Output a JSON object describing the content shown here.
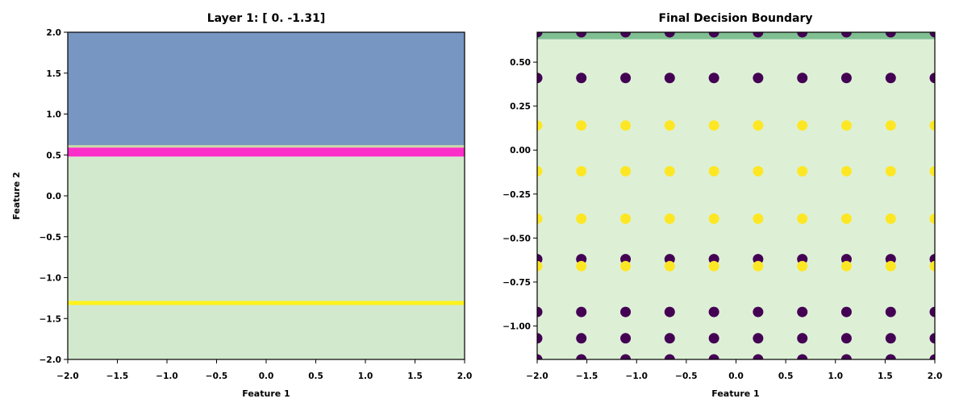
{
  "chart_data": [
    {
      "type": "heatmap",
      "title": "Layer 1: [ 0.   -1.31]",
      "xlabel": "Feature 1",
      "ylabel": "Feature 2",
      "xlim": [
        -2.0,
        2.0
      ],
      "ylim": [
        -2.0,
        2.0
      ],
      "xticks": [
        -2.0,
        -1.5,
        -1.0,
        -0.5,
        0.0,
        0.5,
        1.0,
        1.5,
        2.0
      ],
      "yticks": [
        -2.0,
        -1.5,
        -1.0,
        -0.5,
        0.0,
        0.5,
        1.0,
        1.5,
        2.0
      ],
      "xtick_labels": [
        "−2.0",
        "−1.5",
        "−1.0",
        "−0.5",
        "0.0",
        "0.5",
        "1.0",
        "1.5",
        "2.0"
      ],
      "ytick_labels": [
        "−2.0",
        "−1.5",
        "−1.0",
        "−0.5",
        "0.0",
        "0.5",
        "1.0",
        "1.5",
        "2.0"
      ],
      "grid": false,
      "regions": [
        {
          "y0": -2.0,
          "y1": 0.48,
          "color": "#d2e9cd"
        },
        {
          "y0": 0.48,
          "y1": 0.59,
          "color": "#fc2ec9"
        },
        {
          "y0": 0.59,
          "y1": 0.62,
          "color": "#c8d8a8"
        },
        {
          "y0": 0.62,
          "y1": 2.0,
          "color": "#7796c2"
        }
      ],
      "lines": [
        {
          "y": -1.31,
          "color": "#fff21a"
        }
      ]
    },
    {
      "type": "scatter",
      "title": "Final Decision Boundary",
      "xlabel": "Feature 1",
      "ylabel": "",
      "xlim": [
        -2.0,
        2.0
      ],
      "ylim": [
        -1.19,
        0.67
      ],
      "xticks": [
        -2.0,
        -1.5,
        -1.0,
        -0.5,
        0.0,
        0.5,
        1.0,
        1.5,
        2.0
      ],
      "yticks": [
        -1.0,
        -0.75,
        -0.5,
        -0.25,
        0.0,
        0.25,
        0.5
      ],
      "xtick_labels": [
        "−2.0",
        "−1.5",
        "−1.0",
        "−0.5",
        "0.0",
        "0.5",
        "1.0",
        "1.5",
        "2.0"
      ],
      "ytick_labels": [
        "−1.00",
        "−0.75",
        "−0.50",
        "−0.25",
        "0.00",
        "0.25",
        "0.50"
      ],
      "grid": false,
      "regions": [
        {
          "y0": -1.19,
          "y1": 0.63,
          "color": "#ddf0d6"
        },
        {
          "y0": 0.63,
          "y1": 0.67,
          "color": "#80bf92"
        }
      ],
      "x": [
        -2.0,
        -1.556,
        -1.111,
        -0.667,
        -0.222,
        0.222,
        0.667,
        1.111,
        1.556,
        2.0
      ],
      "series": [
        {
          "class": 0,
          "color": "#440154",
          "y": [
            0.67,
            0.41,
            -0.62,
            -0.92,
            -1.07,
            -1.19
          ]
        },
        {
          "class": 1,
          "color": "#fde725",
          "y": [
            0.14,
            -0.12,
            -0.39,
            -0.66
          ]
        }
      ]
    }
  ]
}
